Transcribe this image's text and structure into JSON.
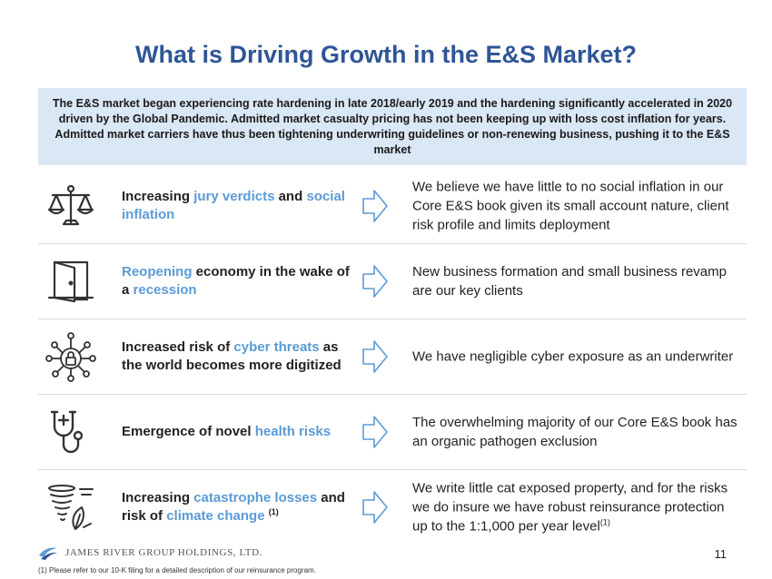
{
  "title": "What is Driving Growth in the E&S Market?",
  "intro": "The E&S market began experiencing rate hardening in late 2018/early 2019 and the hardening significantly accelerated in 2020 driven by the Global Pandemic. Admitted market casualty pricing has not been keeping up with loss cost inflation for years. Admitted market carriers have thus been tightening underwriting guidelines or non-renewing business, pushing it to the E&S market",
  "colors": {
    "title": "#2f5597",
    "highlight": "#5b9bd5",
    "intro_bg": "#dae7f5",
    "arrow": "#5b9bd5"
  },
  "rows": [
    {
      "icon": "scales-icon",
      "left": [
        {
          "text": "Increasing ",
          "hl": false
        },
        {
          "text": "jury verdicts",
          "hl": true
        },
        {
          "text": " and ",
          "hl": false
        },
        {
          "text": "social inflation",
          "hl": true
        }
      ],
      "right": "We believe we have little to no social inflation in our Core E&S book given its small account nature, client risk profile and limits deployment",
      "right_sup": ""
    },
    {
      "icon": "open-door-icon",
      "left": [
        {
          "text": "Reopening",
          "hl": true
        },
        {
          "text": " economy in the wake of a ",
          "hl": false
        },
        {
          "text": "recession",
          "hl": true
        }
      ],
      "right": "New business formation and small business revamp are our key clients",
      "right_sup": ""
    },
    {
      "icon": "cyber-lock-icon",
      "left": [
        {
          "text": "Increased risk of ",
          "hl": false
        },
        {
          "text": "cyber threats",
          "hl": true
        },
        {
          "text": " as the world becomes more digitized",
          "hl": false
        }
      ],
      "right": "We have negligible cyber exposure as an underwriter",
      "right_sup": ""
    },
    {
      "icon": "stethoscope-icon",
      "left": [
        {
          "text": "Emergence of novel ",
          "hl": false
        },
        {
          "text": "health risks",
          "hl": true
        }
      ],
      "right": "The overwhelming majority of our Core E&S book has an organic pathogen exclusion",
      "right_sup": ""
    },
    {
      "icon": "tornado-icon",
      "left": [
        {
          "text": "Increasing ",
          "hl": false
        },
        {
          "text": "catastrophe losses",
          "hl": true
        },
        {
          "text": " and risk of ",
          "hl": false
        },
        {
          "text": "climate change",
          "hl": true
        }
      ],
      "left_sup": "(1)",
      "right": "We write little cat exposed property, and for the risks we do insure we have robust reinsurance protection up to the 1:1,000 per year level",
      "right_sup": "(1)"
    }
  ],
  "footer": {
    "logo_text": "JAMES RIVER GROUP HOLDINGS, LTD.",
    "page_number": "11",
    "footnote": "(1)    Please refer to our 10-K filing for a detailed description of our reinsurance program."
  }
}
